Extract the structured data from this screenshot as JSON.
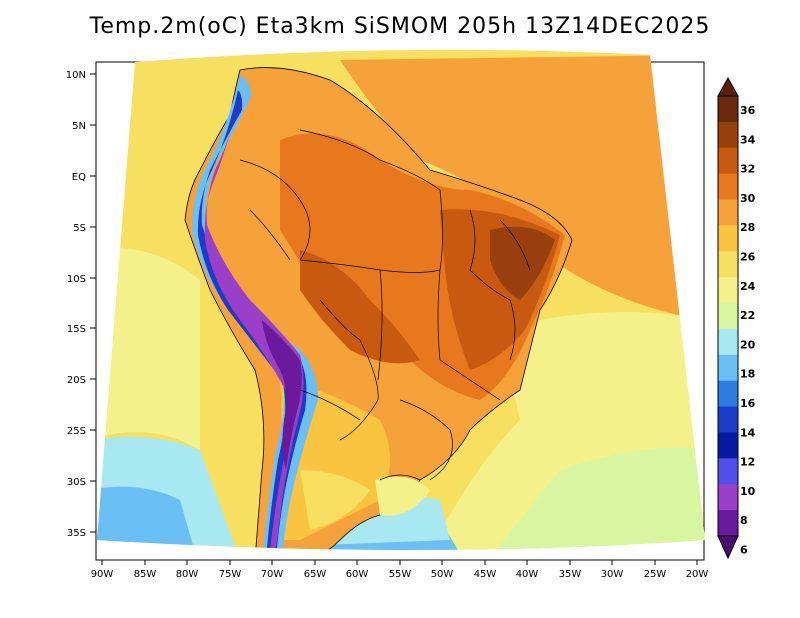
{
  "title": "Temp.2m(oC) Eta3km SiSMOM 205h 13Z14DEC2025",
  "lat_labels": [
    "10N",
    "5N",
    "EQ",
    "5S",
    "10S",
    "15S",
    "20S",
    "25S",
    "30S",
    "35S"
  ],
  "lon_labels": [
    "90W",
    "85W",
    "80W",
    "75W",
    "70W",
    "65W",
    "60W",
    "55W",
    "50W",
    "45W",
    "40W",
    "35W",
    "30W",
    "25W",
    "20W"
  ],
  "colorbar": {
    "units": "oC",
    "labels": [
      "36",
      "34",
      "32",
      "30",
      "28",
      "26",
      "24",
      "22",
      "20",
      "18",
      "16",
      "14",
      "12",
      "10",
      "8",
      "6"
    ],
    "colors": [
      "#6b2a0c",
      "#98410f",
      "#c85a10",
      "#e8781e",
      "#f5a23a",
      "#f9c440",
      "#f7e060",
      "#f5f18a",
      "#d8f5a0",
      "#a8e8f0",
      "#6ac0f5",
      "#2d7de0",
      "#1a3cc8",
      "#0a1aa0",
      "#5050e8",
      "#9a40c8",
      "#6a1a9a"
    ],
    "top_color": "#5a200a",
    "bottom_color": "#4a1070"
  }
}
